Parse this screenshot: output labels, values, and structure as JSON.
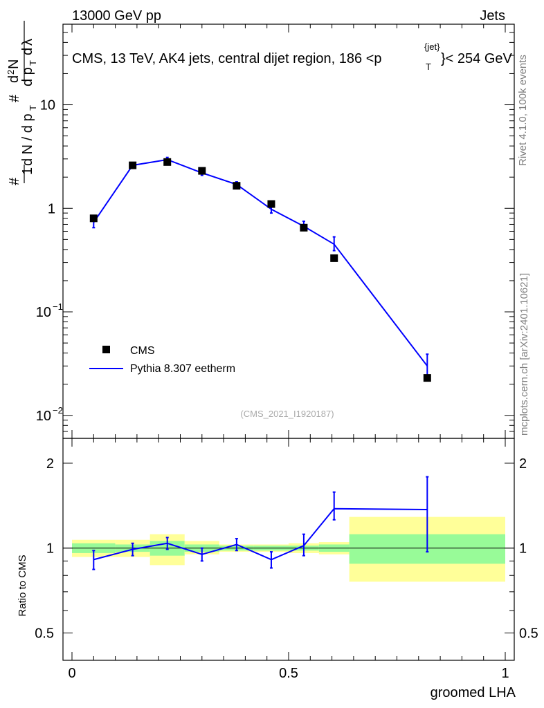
{
  "header": {
    "left": "13000 GeV pp",
    "right": "Jets",
    "title_main": "CMS, 13 TeV, AK4 jets, central dijet region, 186 <p",
    "title_sup": "{jet}",
    "title_sub": "T",
    "title_tail": "}< 254 GeV"
  },
  "side": {
    "rivet": "Rivet 4.1.0,  100k events",
    "mcplots": "mcplots.cern.ch [arXiv:2401.10621]"
  },
  "ylabel_main": "1/N dN/dpT dp_T dλ (#-notation)",
  "ylabel_ratio": "Ratio to CMS",
  "xlabel": "groomed LHA",
  "watermark": "(CMS_2021_I1920187)",
  "legend": {
    "data_label": "CMS",
    "mc_label": "Pythia 8.307 eetherm"
  },
  "colors": {
    "data": "#000000",
    "mc": "#0000ff",
    "band_inner": "#98fb98",
    "band_outer": "#ffff99"
  },
  "chart_data": [
    {
      "type": "scatter+line",
      "panel": "main",
      "yscale": "log",
      "xlim": [
        -0.02,
        1.0
      ],
      "ylim": [
        0.006,
        60
      ],
      "xticks": [
        {
          "v": 0,
          "label": "0"
        },
        {
          "v": 0.5,
          "label": "0.5"
        },
        {
          "v": 1,
          "label": "1"
        }
      ],
      "yticks": [
        {
          "v": 0.01,
          "base": "10",
          "exp": "−2"
        },
        {
          "v": 0.1,
          "base": "10",
          "exp": "−1"
        },
        {
          "v": 1,
          "base": "1",
          "exp": ""
        },
        {
          "v": 10,
          "base": "10",
          "exp": ""
        }
      ],
      "bins": [
        [
          0,
          0.1
        ],
        [
          0.1,
          0.18
        ],
        [
          0.18,
          0.26
        ],
        [
          0.26,
          0.34
        ],
        [
          0.34,
          0.42
        ],
        [
          0.42,
          0.5
        ],
        [
          0.5,
          0.57
        ],
        [
          0.57,
          0.64
        ],
        [
          0.64,
          1.0
        ]
      ],
      "cms": {
        "x": [
          0.05,
          0.14,
          0.22,
          0.3,
          0.38,
          0.46,
          0.535,
          0.605,
          0.82
        ],
        "y": [
          0.8,
          2.6,
          2.8,
          2.3,
          1.65,
          1.1,
          0.65,
          0.33,
          0.023
        ]
      },
      "pythia": {
        "x": [
          0.05,
          0.14,
          0.22,
          0.3,
          0.38,
          0.46,
          0.535,
          0.605,
          0.82
        ],
        "y": [
          0.73,
          2.6,
          2.95,
          2.2,
          1.7,
          0.98,
          0.67,
          0.45,
          0.03
        ],
        "err_lo": [
          0.08,
          0.15,
          0.15,
          0.12,
          0.1,
          0.08,
          0.06,
          0.06,
          0.006
        ],
        "err_hi": [
          0.08,
          0.15,
          0.15,
          0.12,
          0.1,
          0.08,
          0.08,
          0.08,
          0.009
        ]
      }
    },
    {
      "type": "ratio",
      "panel": "ratio",
      "yscale": "log",
      "xlim": [
        -0.02,
        1.0
      ],
      "ylim": [
        0.4,
        2.45
      ],
      "yticks": [
        {
          "v": 0.5,
          "label": "0.5"
        },
        {
          "v": 1,
          "label": "1"
        },
        {
          "v": 2,
          "label": "2"
        }
      ],
      "bands": [
        {
          "x0": 0,
          "x1": 0.1,
          "in_lo": 0.96,
          "in_hi": 1.04,
          "out_lo": 0.93,
          "out_hi": 1.07
        },
        {
          "x0": 0.1,
          "x1": 0.18,
          "in_lo": 0.97,
          "in_hi": 1.03,
          "out_lo": 0.93,
          "out_hi": 1.07
        },
        {
          "x0": 0.18,
          "x1": 0.26,
          "in_lo": 0.94,
          "in_hi": 1.06,
          "out_lo": 0.87,
          "out_hi": 1.12
        },
        {
          "x0": 0.26,
          "x1": 0.34,
          "in_lo": 0.97,
          "in_hi": 1.03,
          "out_lo": 0.95,
          "out_hi": 1.06
        },
        {
          "x0": 0.34,
          "x1": 0.42,
          "in_lo": 0.98,
          "in_hi": 1.02,
          "out_lo": 0.97,
          "out_hi": 1.03
        },
        {
          "x0": 0.42,
          "x1": 0.5,
          "in_lo": 0.98,
          "in_hi": 1.02,
          "out_lo": 0.97,
          "out_hi": 1.03
        },
        {
          "x0": 0.5,
          "x1": 0.57,
          "in_lo": 0.98,
          "in_hi": 1.02,
          "out_lo": 0.96,
          "out_hi": 1.04
        },
        {
          "x0": 0.57,
          "x1": 0.64,
          "in_lo": 0.97,
          "in_hi": 1.03,
          "out_lo": 0.95,
          "out_hi": 1.05
        },
        {
          "x0": 0.64,
          "x1": 1.0,
          "in_lo": 0.88,
          "in_hi": 1.12,
          "out_lo": 0.76,
          "out_hi": 1.29
        }
      ],
      "x": [
        0.05,
        0.14,
        0.22,
        0.3,
        0.38,
        0.46,
        0.535,
        0.605,
        0.82
      ],
      "ratio": [
        0.91,
        0.99,
        1.04,
        0.95,
        1.03,
        0.91,
        1.02,
        1.38,
        1.37
      ],
      "err_lo": [
        0.07,
        0.05,
        0.05,
        0.05,
        0.05,
        0.06,
        0.08,
        0.12,
        0.4
      ],
      "err_hi": [
        0.07,
        0.05,
        0.05,
        0.05,
        0.05,
        0.06,
        0.1,
        0.2,
        0.42
      ]
    }
  ]
}
